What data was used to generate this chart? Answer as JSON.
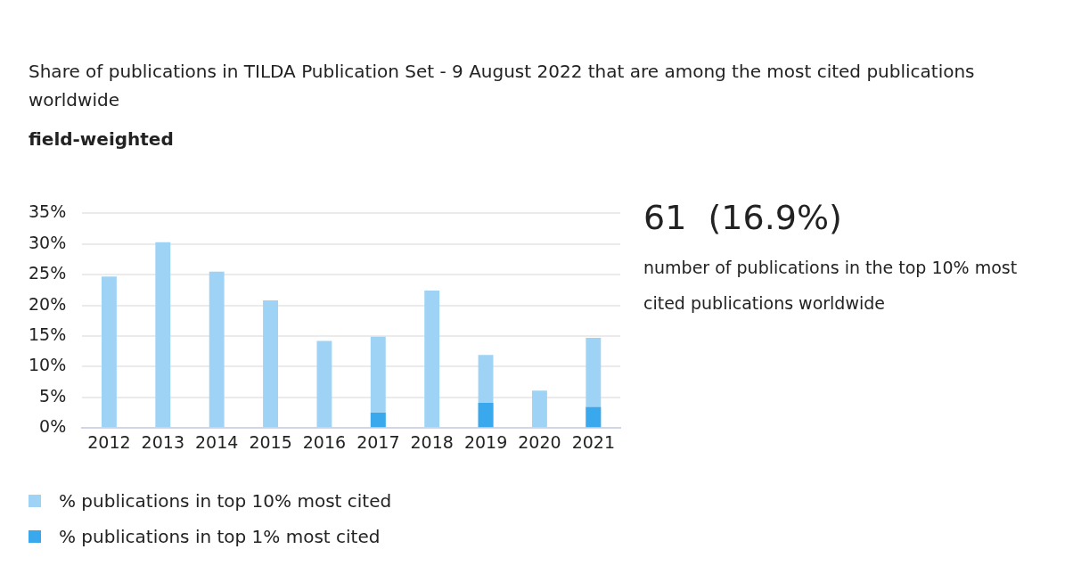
{
  "chart_data": {
    "type": "bar",
    "title": "Share of publications in TILDA Publication Set - 9 August 2022 that are among the most cited publications worldwide",
    "subtitle": "field-weighted",
    "categories": [
      "2012",
      "2013",
      "2014",
      "2015",
      "2016",
      "2017",
      "2018",
      "2019",
      "2020",
      "2021"
    ],
    "series": [
      {
        "name": "% publications in top 10% most cited",
        "color": "#9fd3f5",
        "values": [
          24.7,
          30.3,
          25.5,
          20.8,
          14.2,
          14.9,
          22.4,
          11.9,
          6.1,
          14.7
        ]
      },
      {
        "name": "% publications in top 1% most cited",
        "color": "#3aa8ec",
        "values": [
          0,
          0,
          0,
          0,
          0,
          2.5,
          0,
          4.1,
          0,
          3.4
        ]
      }
    ],
    "ylim": [
      0,
      35
    ],
    "yticks": [
      {
        "value": 0,
        "label": "0%"
      },
      {
        "value": 5,
        "label": "5%"
      },
      {
        "value": 10,
        "label": "10%"
      },
      {
        "value": 15,
        "label": "15%"
      },
      {
        "value": 20,
        "label": "20%"
      },
      {
        "value": 25,
        "label": "25%"
      },
      {
        "value": 30,
        "label": "30%"
      },
      {
        "value": 35,
        "label": "35%"
      }
    ],
    "grid": "y",
    "legend": "bottom left",
    "annotations": [
      "61  (16.9%)",
      "number of publications in the top 10% most cited publications worldwide"
    ]
  }
}
